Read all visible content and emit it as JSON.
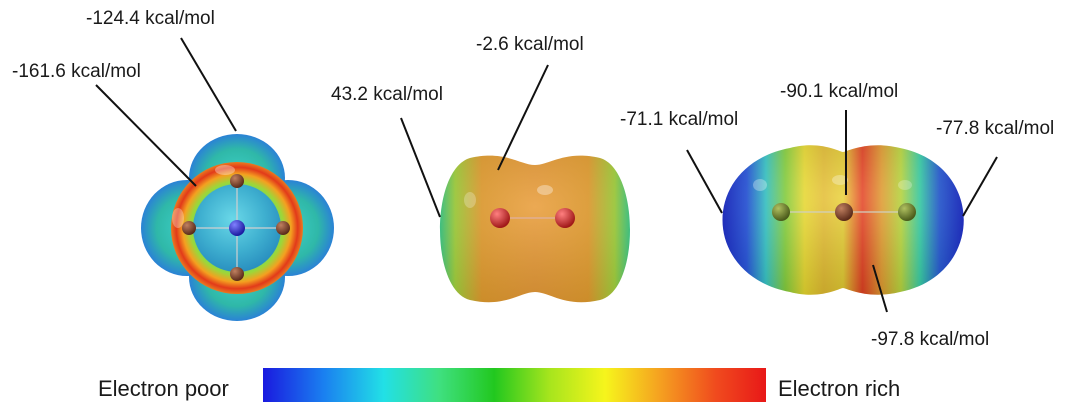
{
  "labels": {
    "mol1_top": "-124.4 kcal/mol",
    "mol1_left": "-161.6 kcal/mol",
    "mol2_top": "-2.6 kcal/mol",
    "mol2_left": "43.2 kcal/mol",
    "mol3_left": "-71.1 kcal/mol",
    "mol3_top": "-90.1 kcal/mol",
    "mol3_right": "-77.8 kcal/mol",
    "mol3_bottom": "-97.8 kcal/mol"
  },
  "colorbar": {
    "left_label": "Electron poor",
    "right_label": "Electron rich",
    "stops": [
      "#1a1adf",
      "#1a7ff0",
      "#22e0e6",
      "#3fe080",
      "#22c81f",
      "#a7e51d",
      "#f6f51c",
      "#f5a020",
      "#f04b1e",
      "#e81818"
    ]
  },
  "colors": {
    "atom_blue": "#2a2ad0",
    "atom_red": "#d42020",
    "atom_olive": "#6a7a2a"
  }
}
